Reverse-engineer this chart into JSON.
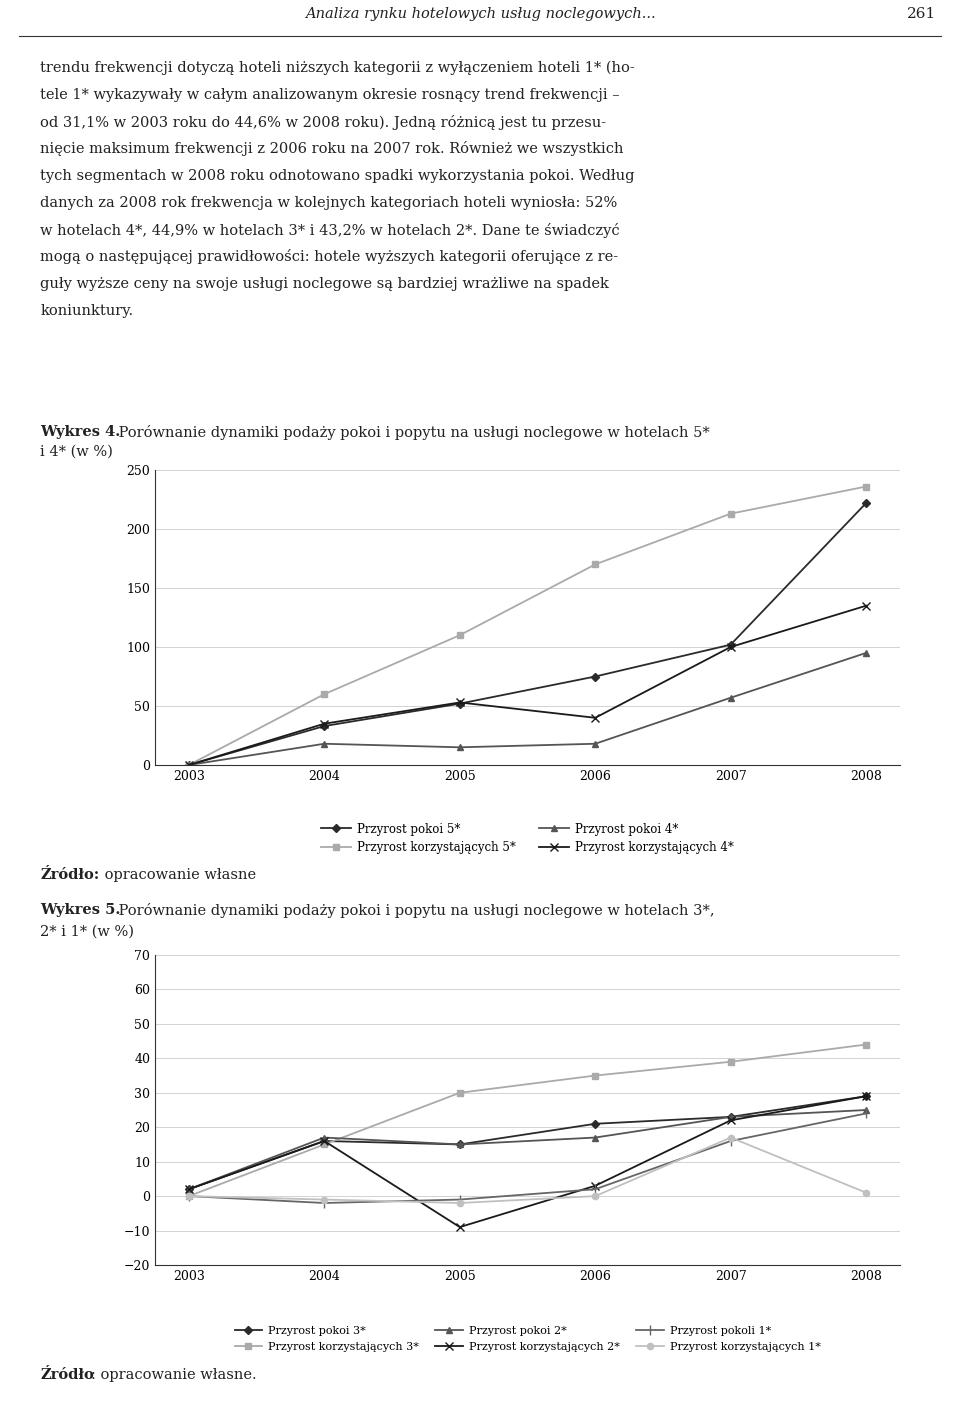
{
  "page_header": "Analiza rynku hotelowych usług noclegowych...",
  "page_number": "261",
  "body_lines": [
    "trendu frekwencji dotyczą hoteli niższych kategorii z wyłączeniem hoteli 1* (ho-",
    "tele 1* wykazywały w całym analizowanym okresie rosnący trend frekwencji –",
    "od 31,1% w 2003 roku do 44,6% w 2008 roku). Jedną różnicą jest tu przesu-",
    "nięcie maksimum frekwencji z 2006 roku na 2007 rok. Również we wszystkich",
    "tych segmentach w 2008 roku odnotowano spadki wykorzystania pokoi. Według",
    "danych za 2008 rok frekwencja w kolejnych kategoriach hoteli wyniosła: 52%",
    "w hotelach 4*, 44,9% w hotelach 3* i 43,2% w hotelach 2*. Dane te świadczyć",
    "mogą o następującej prawidłowości: hotele wyższych kategorii oferujące z re-",
    "guły wyższe ceny na swoje usługi noclegowe są bardziej wrażliwe na spadek",
    "koniunktury."
  ],
  "chart1_title_bold": "Wykres 4.",
  "chart1_title_rest": " Porównanie dynamiki podaży pokoi i popytu na usługi noclegowe w hotelach 5*",
  "chart1_title_line2": "i 4* (w %)",
  "chart1_years": [
    2003,
    2004,
    2005,
    2006,
    2007,
    2008
  ],
  "chart1_pokoi5": [
    0,
    33,
    52,
    75,
    102,
    222
  ],
  "chart1_korzyst5": [
    0,
    60,
    110,
    170,
    213,
    236
  ],
  "chart1_pokoi4": [
    0,
    18,
    15,
    18,
    57,
    95
  ],
  "chart1_korzyst4": [
    0,
    35,
    53,
    40,
    100,
    135
  ],
  "chart1_ylim": [
    0,
    250
  ],
  "chart1_yticks": [
    0,
    50,
    100,
    150,
    200,
    250
  ],
  "chart1_source_bold": "Źródło:",
  "chart1_source_rest": " opracowanie własne",
  "chart2_title_bold": "Wykres 5.",
  "chart2_title_rest": " Porównanie dynamiki podaży pokoi i popytu na usługi noclegowe w hotelach 3*,",
  "chart2_title_line2": "2* i 1* (w %)",
  "chart2_years": [
    2003,
    2004,
    2005,
    2006,
    2007,
    2008
  ],
  "chart2_pokoi3": [
    2,
    16,
    15,
    21,
    23,
    29
  ],
  "chart2_korzyst3": [
    0,
    15,
    30,
    35,
    39,
    44
  ],
  "chart2_pokoi2": [
    2,
    17,
    15,
    17,
    23,
    25
  ],
  "chart2_korzyst2": [
    2,
    16,
    -9,
    3,
    22,
    29
  ],
  "chart2_pokoli1": [
    0,
    -2,
    -1,
    2,
    16,
    24
  ],
  "chart2_korzyst1": [
    0,
    -1,
    -2,
    0,
    17,
    1
  ],
  "chart2_ylim": [
    -20,
    70
  ],
  "chart2_yticks": [
    -20,
    -10,
    0,
    10,
    20,
    30,
    40,
    50,
    60,
    70
  ],
  "chart2_source_bold": "Źródło",
  "chart2_source_rest": ": opracowanie własne."
}
